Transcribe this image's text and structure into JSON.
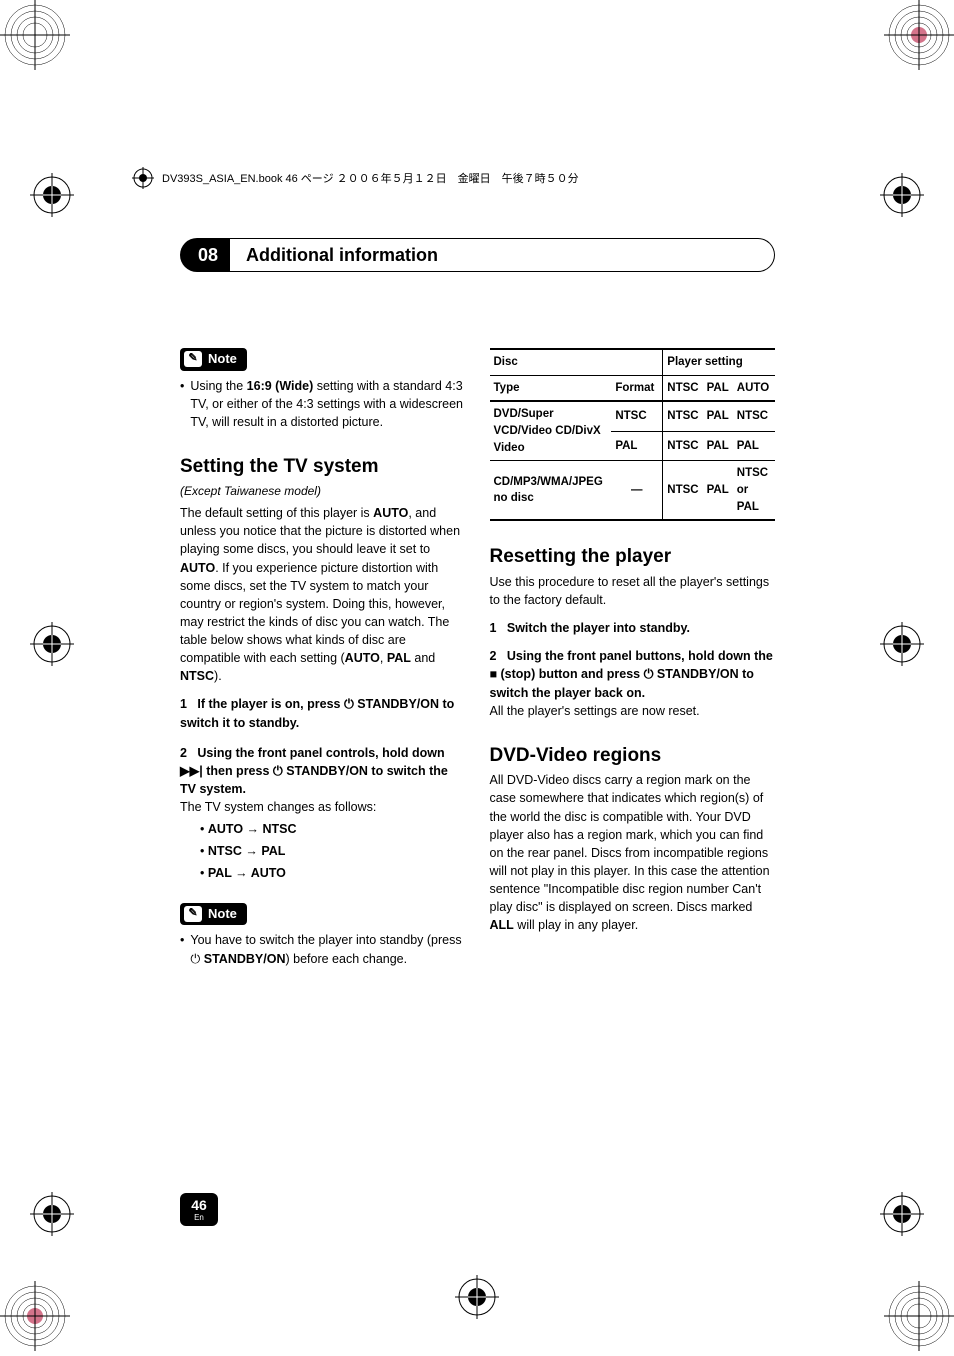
{
  "book_header": "DV393S_ASIA_EN.book 46 ページ ２００６年５月１２日　金曜日　午後７時５０分",
  "chapter": {
    "num": "08",
    "title": "Additional information"
  },
  "note_label": "Note",
  "left": {
    "note_bullet": "Using the <b>16:9 (Wide)</b> setting with a standard 4:3 TV, or either of the 4:3 settings with a widescreen TV, will result in a distorted picture.",
    "h_tv": "Setting the TV system",
    "tv_except": "(Except Taiwanese model)",
    "tv_body": "The default setting of this player is <b>AUTO</b>, and unless you notice that the picture is distorted when playing some discs, you should leave it set to <b>AUTO</b>. If you experience picture distortion with some discs, set the TV system to match your country or region's system. Doing this, however, may restrict the kinds of disc you can watch. The table below shows what kinds of disc are compatible with each setting (<b>AUTO</b>, <b>PAL</b> and <b>NTSC</b>).",
    "step1": "1&nbsp;&nbsp;&nbsp;If the player is on, press ⏻ STANDBY/ON to switch it to standby.",
    "step2": "2&nbsp;&nbsp;&nbsp;Using the front panel controls, hold down ▶▶| then press ⏻ STANDBY/ON to switch the TV system.",
    "tv_changes": "The TV system changes as follows:",
    "b1": "AUTO → NTSC",
    "b2": "NTSC → PAL",
    "b3": "PAL → AUTO",
    "note2_bullet": "You have to switch the player into standby (press ⏻ <b>STANDBY/ON</b>) before each change."
  },
  "table": {
    "h_disc": "Disc",
    "h_player": "Player setting",
    "h_type": "Type",
    "h_format": "Format",
    "h_ntsc": "NTSC",
    "h_pal": "PAL",
    "h_auto": "AUTO",
    "r1_type": "DVD/Super VCD/Video CD/DivX Video",
    "r1a_fmt": "NTSC",
    "r1a_c1": "NTSC",
    "r1a_c2": "PAL",
    "r1a_c3": "NTSC",
    "r1b_fmt": "PAL",
    "r1b_c1": "NTSC",
    "r1b_c2": "PAL",
    "r1b_c3": "PAL",
    "r2_type": "CD/MP3/WMA/JPEG\nno disc",
    "r2_fmt": "—",
    "r2_c1": "NTSC",
    "r2_c2": "PAL",
    "r2_c3": "NTSC or PAL"
  },
  "right": {
    "h_reset": "Resetting the player",
    "reset_body": "Use this procedure to reset all the player's settings to the factory default.",
    "reset_s1": "1&nbsp;&nbsp;&nbsp;Switch the player into standby.",
    "reset_s2": "2&nbsp;&nbsp;&nbsp;Using the front panel buttons, hold down the ■ (stop) button and press ⏻ STANDBY/ON to switch the player back on.",
    "reset_after": "All the player's settings are now reset.",
    "h_regions": "DVD-Video regions",
    "regions_body": "All DVD-Video discs carry a region mark on the case somewhere that indicates which region(s) of the world the disc is compatible with. Your DVD player also has a region mark, which you can find on the rear panel. Discs from incompatible regions will not play in this player. In this case the attention sentence \"Incompatible disc region number Can't play disc\" is displayed on screen. Discs marked <b>ALL</b> will play in any player."
  },
  "page": {
    "num": "46",
    "lang": "En"
  },
  "colors": {
    "black": "#000000",
    "white": "#ffffff"
  }
}
